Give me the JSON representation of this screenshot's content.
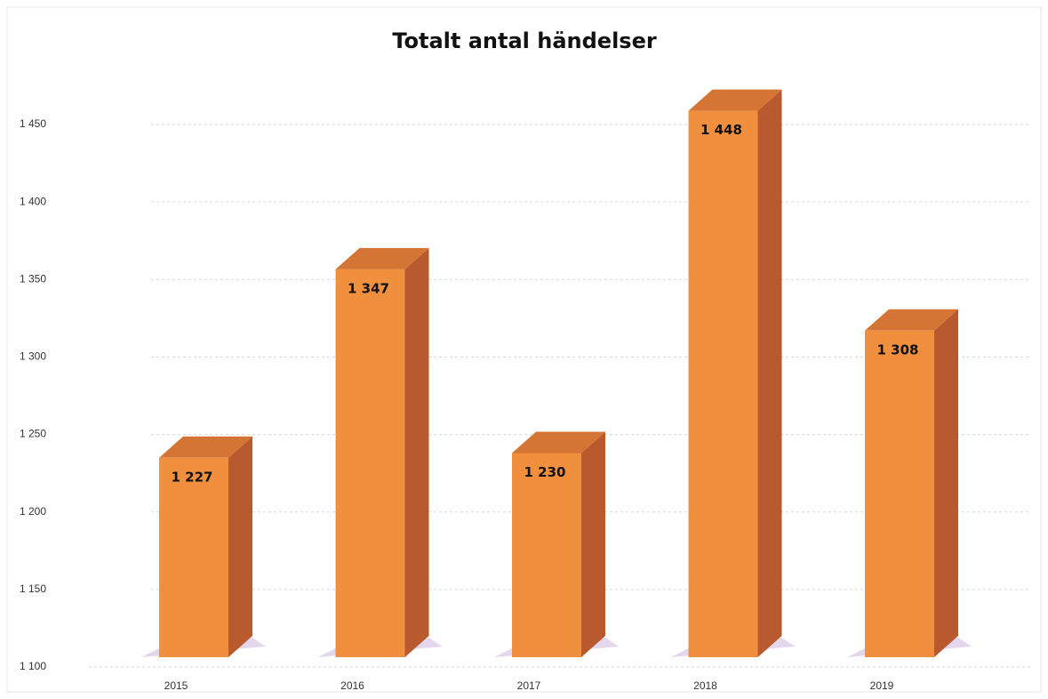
{
  "chart_data": {
    "type": "bar3d",
    "title": "Totalt antal händelser",
    "categories": [
      "2015",
      "2016",
      "2017",
      "2018",
      "2019"
    ],
    "values": [
      1227,
      1347,
      1230,
      1448,
      1308
    ],
    "value_labels": [
      "1 227",
      "1 347",
      "1 230",
      "1 448",
      "1 308"
    ],
    "color": "#f0903f",
    "ylim": [
      1100,
      1450
    ],
    "yticks": [
      {
        "value": 1100,
        "label": "1 100"
      },
      {
        "value": 1150,
        "label": "1 150"
      },
      {
        "value": 1200,
        "label": "1 200"
      },
      {
        "value": 1250,
        "label": "1 250"
      },
      {
        "value": 1300,
        "label": "1 300"
      },
      {
        "value": 1350,
        "label": "1 350"
      },
      {
        "value": 1400,
        "label": "1 400"
      },
      {
        "value": 1450,
        "label": "1 450"
      }
    ],
    "grid": true
  }
}
